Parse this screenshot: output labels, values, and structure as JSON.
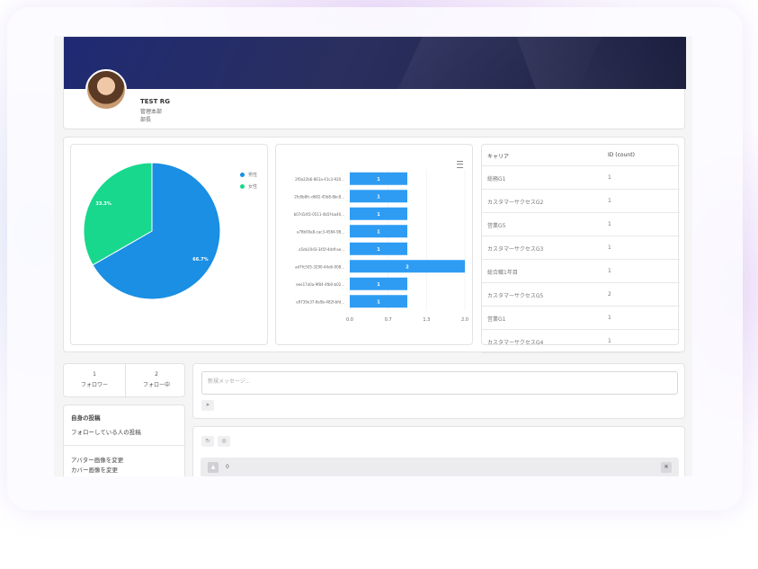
{
  "profile": {
    "name": "TEST RG",
    "department": "管理本部",
    "role": "部長"
  },
  "pie_chart": {
    "legend": [
      {
        "label": "男性",
        "color": "#1a8fe3"
      },
      {
        "label": "女性",
        "color": "#17d88c"
      }
    ]
  },
  "bar_chart": {},
  "career_table": {
    "headers": [
      "キャリア",
      "ID (count)"
    ],
    "rows": [
      [
        "総務G1",
        "1"
      ],
      [
        "カスタマーサクセスG2",
        "1"
      ],
      [
        "営業G5",
        "1"
      ],
      [
        "カスタマーサクセスG3",
        "1"
      ],
      [
        "総合職1年目",
        "1"
      ],
      [
        "カスタマーサクセスG5",
        "2"
      ],
      [
        "営業G1",
        "1"
      ],
      [
        "カスタマーサクセスG4",
        "1"
      ]
    ]
  },
  "follow": {
    "followers_count": "1",
    "followers_label": "フォロワー",
    "following_count": "2",
    "following_label": "フォロー中"
  },
  "side_menu": {
    "my_posts": "自身の投稿",
    "following_posts": "フォローしている人の投稿",
    "change_avatar": "アバター画像を変更",
    "change_cover": "カバー画像を変更"
  },
  "message": {
    "placeholder": "新規メッセージ...",
    "send_icon": "send-icon"
  },
  "feed": {
    "refresh_icon": "refresh-icon",
    "hide_icon": "eye-off-icon",
    "like_count": "0",
    "like_icon": "thumbs-up-icon",
    "delete_icon": "trash-icon"
  },
  "chart_data": [
    {
      "type": "pie",
      "categories": [
        "男性",
        "女性"
      ],
      "values": [
        66.7,
        33.3
      ],
      "data_labels": [
        "66.7%",
        "33.3%"
      ],
      "colors": [
        "#1a8fe3",
        "#17d88c"
      ],
      "legend": "top-right"
    },
    {
      "type": "bar",
      "orientation": "horizontal",
      "categories": [
        "2f0a22b6-861a-41c3-920...",
        "2fc8b8fc-d682-45b8-8bc8...",
        "b07d14f2-0511-4b5f-ba40...",
        "a78b00a8-cac3-4584-98...",
        "a5da10d3-345f-4ddf-ae...",
        "ad7fc505-3290-44e6-908...",
        "eee17a0a-9f84-4fb0-b02...",
        "e9739e37-8e9b-482f-bfd..."
      ],
      "values": [
        1,
        1,
        1,
        1,
        1,
        2,
        1,
        1
      ],
      "data_labels": [
        "1",
        "1",
        "1",
        "1",
        "1",
        "2",
        "1",
        "1"
      ],
      "xticks": [
        "0.0",
        "0.7",
        "1.3",
        "2.0"
      ],
      "xlim": [
        0,
        2
      ],
      "color": "#2d9cf2",
      "grid": true
    }
  ]
}
